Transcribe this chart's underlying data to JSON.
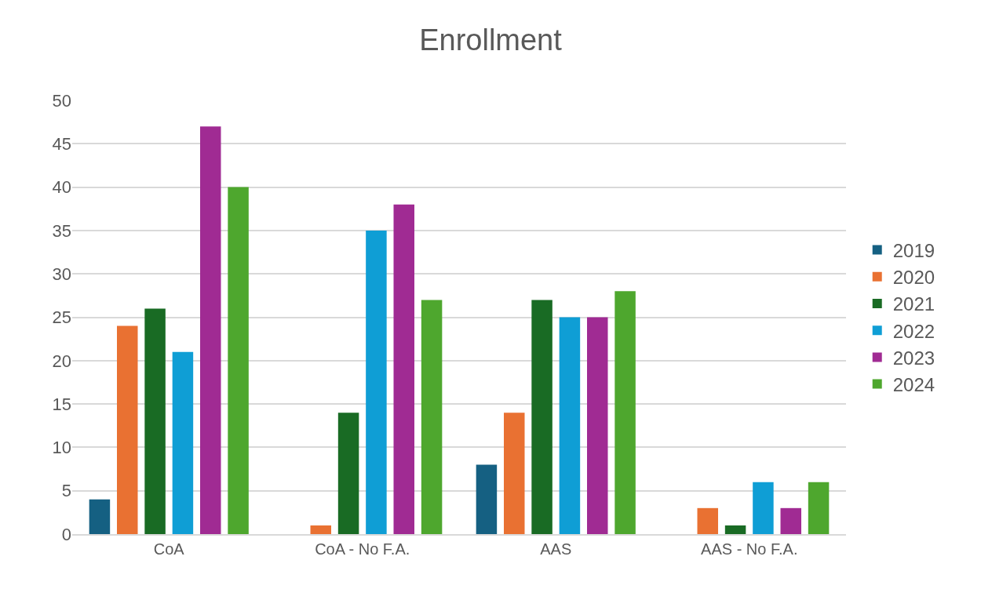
{
  "chart_data": {
    "type": "bar",
    "title": "Enrollment",
    "categories": [
      "CoA",
      "CoA - No F.A.",
      "AAS",
      "AAS - No F.A."
    ],
    "series": [
      {
        "name": "2019",
        "color": "#156082",
        "values": [
          4,
          0,
          8,
          0
        ]
      },
      {
        "name": "2020",
        "color": "#e97132",
        "values": [
          24,
          1,
          14,
          3
        ]
      },
      {
        "name": "2021",
        "color": "#196b24",
        "values": [
          26,
          14,
          27,
          1
        ]
      },
      {
        "name": "2022",
        "color": "#0f9ed5",
        "values": [
          21,
          35,
          25,
          6
        ]
      },
      {
        "name": "2023",
        "color": "#a02b93",
        "values": [
          47,
          38,
          25,
          3
        ]
      },
      {
        "name": "2024",
        "color": "#4ea72e",
        "values": [
          40,
          27,
          28,
          6
        ]
      }
    ],
    "ylim": [
      0,
      50
    ],
    "yticks": [
      0,
      5,
      10,
      15,
      20,
      25,
      30,
      35,
      40,
      45,
      50
    ],
    "grid": "y",
    "legend": "right"
  }
}
